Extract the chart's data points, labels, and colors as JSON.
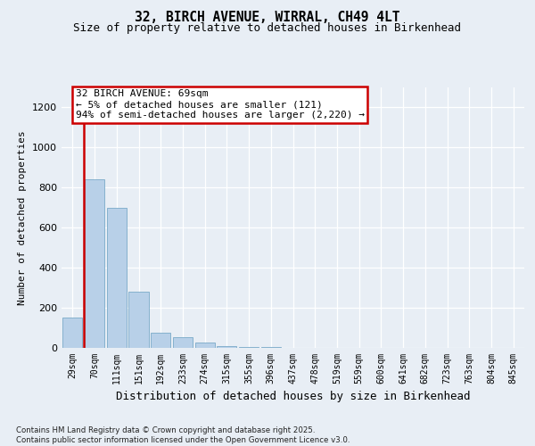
{
  "title": "32, BIRCH AVENUE, WIRRAL, CH49 4LT",
  "subtitle": "Size of property relative to detached houses in Birkenhead",
  "xlabel": "Distribution of detached houses by size in Birkenhead",
  "ylabel": "Number of detached properties",
  "annotation_title": "32 BIRCH AVENUE: 69sqm",
  "annotation_line1": "← 5% of detached houses are smaller (121)",
  "annotation_line2": "94% of semi-detached houses are larger (2,220) →",
  "footer1": "Contains HM Land Registry data © Crown copyright and database right 2025.",
  "footer2": "Contains public sector information licensed under the Open Government Licence v3.0.",
  "bar_color": "#b8d0e8",
  "bar_edge_color": "#7aaac8",
  "annotation_box_edge": "#cc0000",
  "vline_color": "#cc0000",
  "background_color": "#e8eef5",
  "grid_color": "#ffffff",
  "categories": [
    "29sqm",
    "70sqm",
    "111sqm",
    "151sqm",
    "192sqm",
    "233sqm",
    "274sqm",
    "315sqm",
    "355sqm",
    "396sqm",
    "437sqm",
    "478sqm",
    "519sqm",
    "559sqm",
    "600sqm",
    "641sqm",
    "682sqm",
    "723sqm",
    "763sqm",
    "804sqm",
    "845sqm"
  ],
  "values": [
    150,
    840,
    700,
    280,
    75,
    55,
    28,
    10,
    5,
    3,
    2,
    2,
    1,
    1,
    1,
    1,
    1,
    0,
    0,
    0,
    0
  ],
  "ylim": [
    0,
    1300
  ],
  "yticks": [
    0,
    200,
    400,
    600,
    800,
    1000,
    1200
  ],
  "vline_at": 0.5,
  "property_bin_index": 1
}
